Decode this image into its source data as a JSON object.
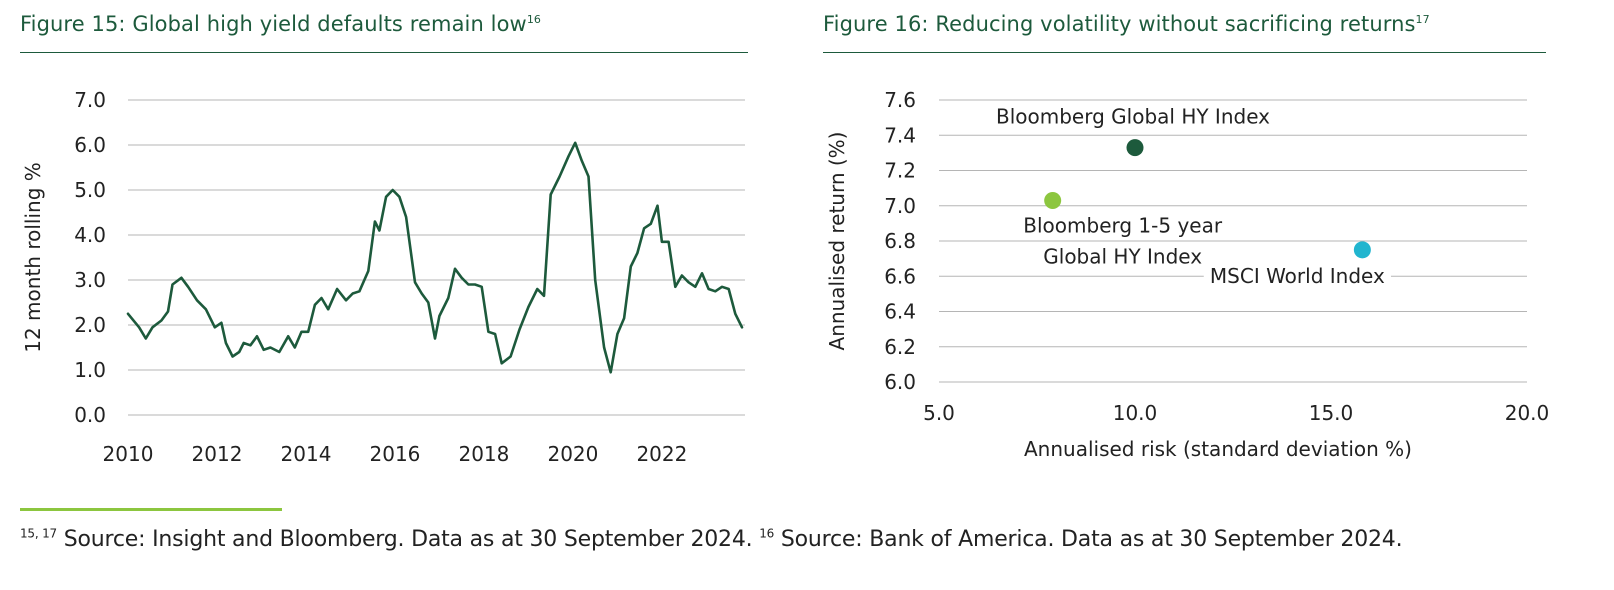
{
  "figure15": {
    "title": "Figure 15: Global high yield defaults remain low",
    "title_sup": "16"
  },
  "figure16": {
    "title": "Figure 16: Reducing volatility without sacrificing returns",
    "title_sup": "17"
  },
  "footnote": {
    "sup1": "15, 17",
    "text1": " Source: Insight and Bloomberg. Data as at 30 September 2024. ",
    "sup2": "16",
    "text2": " Source: Bank of America. Data as at 30 September 2024."
  },
  "colors": {
    "title_green": "#1d5a3c",
    "line_green": "#1d5a3c",
    "footer_accent": "#8cc63f",
    "point_dark_green": "#1d5a3c",
    "point_light_green": "#8cc63f",
    "point_cyan": "#21b5cf"
  },
  "chart_data": [
    {
      "type": "line",
      "title": "",
      "xlabel": "",
      "ylabel": "12 month rolling %",
      "xlim": [
        2010,
        2023.8
      ],
      "ylim": [
        0,
        7
      ],
      "x_ticks": [
        "2010",
        "2012",
        "2014",
        "2016",
        "2018",
        "2020",
        "2022"
      ],
      "y_ticks": [
        "0.0",
        "1.0",
        "2.0",
        "3.0",
        "4.0",
        "5.0",
        "6.0",
        "7.0"
      ],
      "grid": true,
      "series": [
        {
          "x": [
            2010.0,
            2010.25,
            2010.4,
            2010.55,
            2010.75,
            2010.9,
            2011.0,
            2011.2,
            2011.35,
            2011.55,
            2011.75,
            2011.95,
            2012.1,
            2012.2,
            2012.35,
            2012.5,
            2012.6,
            2012.75,
            2012.9,
            2013.05,
            2013.2,
            2013.4,
            2013.6,
            2013.75,
            2013.9,
            2014.05,
            2014.2,
            2014.35,
            2014.5,
            2014.7,
            2014.9,
            2015.05,
            2015.2,
            2015.4,
            2015.55,
            2015.65,
            2015.8,
            2015.95,
            2016.1,
            2016.25,
            2016.45,
            2016.6,
            2016.75,
            2016.9,
            2017.0,
            2017.2,
            2017.35,
            2017.5,
            2017.65,
            2017.8,
            2017.95,
            2018.1,
            2018.25,
            2018.4,
            2018.6,
            2018.8,
            2019.0,
            2019.2,
            2019.35,
            2019.5,
            2019.7,
            2019.9,
            2020.05,
            2020.2,
            2020.35,
            2020.5,
            2020.7,
            2020.85,
            2021.0,
            2021.15,
            2021.3,
            2021.45,
            2021.6,
            2021.75,
            2021.9,
            2022.0,
            2022.15,
            2022.3,
            2022.45,
            2022.6,
            2022.75,
            2022.9,
            2023.05,
            2023.2,
            2023.35,
            2023.5,
            2023.65,
            2023.8
          ],
          "y": [
            2.25,
            1.95,
            1.7,
            1.95,
            2.1,
            2.3,
            2.9,
            3.05,
            2.85,
            2.55,
            2.35,
            1.95,
            2.05,
            1.6,
            1.3,
            1.4,
            1.6,
            1.55,
            1.75,
            1.45,
            1.5,
            1.4,
            1.75,
            1.5,
            1.85,
            1.85,
            2.45,
            2.6,
            2.35,
            2.8,
            2.55,
            2.7,
            2.75,
            3.2,
            4.3,
            4.1,
            4.85,
            5.0,
            4.85,
            4.4,
            2.95,
            2.7,
            2.5,
            1.7,
            2.2,
            2.6,
            3.25,
            3.05,
            2.9,
            2.9,
            2.85,
            1.85,
            1.8,
            1.15,
            1.3,
            1.9,
            2.4,
            2.8,
            2.65,
            4.9,
            5.3,
            5.75,
            6.05,
            5.65,
            5.3,
            3.0,
            1.5,
            0.95,
            1.8,
            2.15,
            3.3,
            3.6,
            4.15,
            4.25,
            4.65,
            3.85,
            3.85,
            2.85,
            3.1,
            2.95,
            2.85,
            3.15,
            2.8,
            2.75,
            2.85,
            2.8,
            2.25,
            1.95
          ]
        }
      ]
    },
    {
      "type": "scatter",
      "title": "",
      "xlabel": "Annualised risk (standard deviation %)",
      "ylabel": "Annualised return (%)",
      "xlim": [
        5,
        20
      ],
      "ylim": [
        6,
        7.6
      ],
      "x_ticks": [
        "5.0",
        "10.0",
        "15.0",
        "20.0"
      ],
      "y_ticks": [
        "6.0",
        "6.2",
        "6.4",
        "6.6",
        "6.8",
        "7.0",
        "7.2",
        "7.4",
        "7.6"
      ],
      "grid": true,
      "points": [
        {
          "label": "Bloomberg Global HY Index",
          "x": 10.0,
          "y": 7.33,
          "color": "#1d5a3c"
        },
        {
          "label_lines": [
            "Bloomberg 1-5 year",
            "Global HY Index"
          ],
          "x": 7.9,
          "y": 7.03,
          "color": "#8cc63f"
        },
        {
          "label": "MSCI World Index",
          "x": 15.8,
          "y": 6.75,
          "color": "#21b5cf"
        }
      ]
    }
  ]
}
